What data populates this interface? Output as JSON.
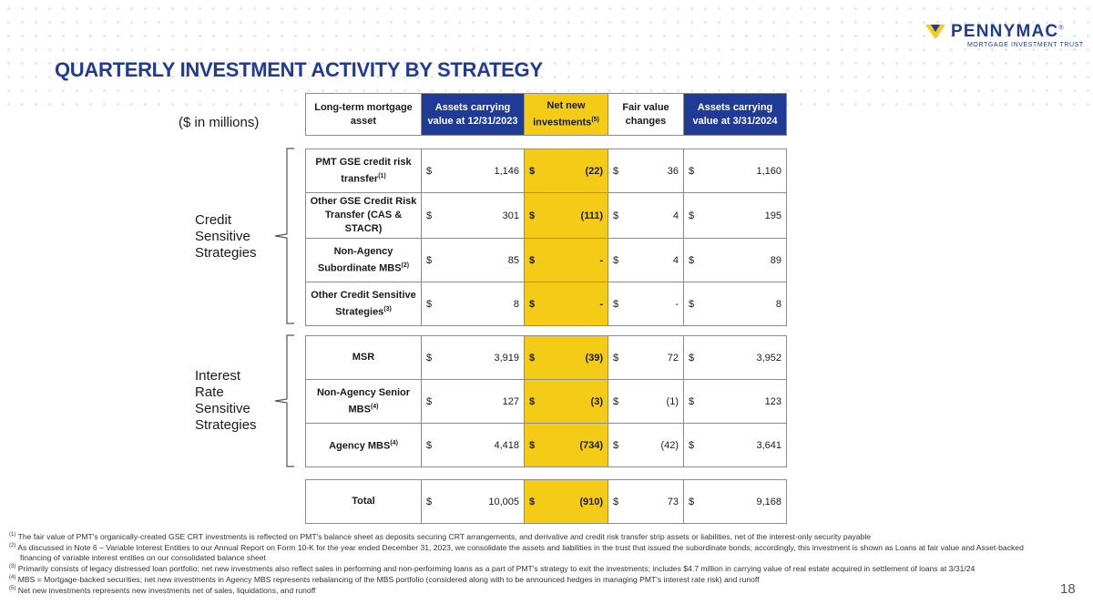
{
  "title": "QUARTERLY INVESTMENT ACTIVITY BY STRATEGY",
  "logo": {
    "name": "PENNYMAC",
    "reg": "®",
    "subtitle": "MORTGAGE INVESTMENT TRUST"
  },
  "units": "($ in millions)",
  "colors": {
    "brand_blue": "#1f3b96",
    "highlight_yellow": "#f4cc17"
  },
  "header": {
    "col0": "Long-term mortgage asset",
    "col1": "Assets carrying value at 12/31/2023",
    "col2": "Net new investments",
    "col2_sup": "(5)",
    "col3": "Fair value changes",
    "col4": "Assets carrying value at 3/31/2024"
  },
  "groups": {
    "credit": {
      "label_lines": [
        "Credit",
        "Sensitive",
        "Strategies"
      ],
      "rows": [
        {
          "name": "PMT GSE credit risk transfer",
          "sup": "(1)",
          "c1": "1,146",
          "c2": "(22)",
          "c3": "36",
          "c4": "1,160"
        },
        {
          "name": "Other GSE Credit Risk Transfer (CAS & STACR)",
          "sup": "",
          "c1": "301",
          "c2": "(111)",
          "c3": "4",
          "c4": "195"
        },
        {
          "name": "Non-Agency Subordinate MBS",
          "sup": "(2)",
          "c1": "85",
          "c2": "-",
          "c3": "4",
          "c4": "89"
        },
        {
          "name": "Other Credit Sensitive Strategies",
          "sup": "(3)",
          "c1": "8",
          "c2": "-",
          "c3": "-",
          "c4": "8"
        }
      ]
    },
    "rate": {
      "label_lines": [
        "Interest",
        "Rate",
        "Sensitive",
        "Strategies"
      ],
      "rows": [
        {
          "name": "MSR",
          "sup": "",
          "c1": "3,919",
          "c2": "(39)",
          "c3": "72",
          "c4": "3,952"
        },
        {
          "name": "Non-Agency Senior MBS",
          "sup": "(4)",
          "c1": "127",
          "c2": "(3)",
          "c3": "(1)",
          "c4": "123"
        },
        {
          "name": "Agency MBS",
          "sup": "(4)",
          "c1": "4,418",
          "c2": "(734)",
          "c3": "(42)",
          "c4": "3,641"
        }
      ]
    }
  },
  "total": {
    "name": "Total",
    "sup": "",
    "c1": "10,005",
    "c2": "(910)",
    "c3": "73",
    "c4": "9,168"
  },
  "currency_symbol": "$",
  "footnotes": [
    {
      "marker": "(1)",
      "text": "The fair value of PMT's organically-created GSE CRT investments is reflected on PMT's balance sheet as deposits securing CRT arrangements, and derivative and credit risk transfer strip assets or liabilities, net of the interest-only security payable"
    },
    {
      "marker": "(2)",
      "text": "As discussed in Note 6 – Variable Interest Entities to our Annual Report on Form 10-K for the year ended December 31, 2023, we consolidate the assets and liabilities in the trust that issued the subordinate bonds; accordingly, this investment is shown as Loans at fair value and Asset-backed financing of variable interest entities on our consolidated balance sheet"
    },
    {
      "marker": "(3)",
      "text": "Primarily consists of legacy distressed loan portfolio; net new investments also reflect sales in performing and non-performing loans as a part of PMT's strategy to exit the investments; includes $4.7 million in carrying value of real estate acquired in settlement of loans at 3/31/24"
    },
    {
      "marker": "(4)",
      "text": "MBS = Mortgage-backed securities; net new investments in Agency MBS represents rebalancing of the MBS portfolio (considered along with to be announced hedges in managing PMT's interest rate risk) and runoff"
    },
    {
      "marker": "(5)",
      "text": "Net new investments represents new investments net of sales, liquidations, and runoff"
    }
  ],
  "page_number": "18"
}
